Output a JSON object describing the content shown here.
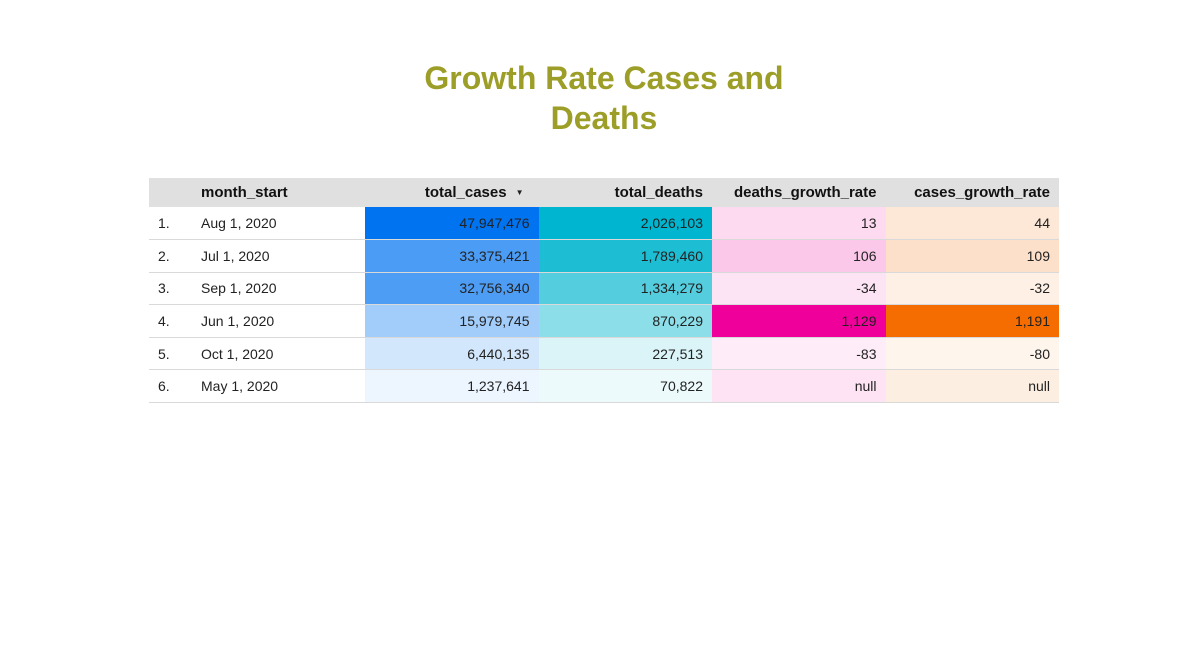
{
  "chart_data": {
    "type": "table",
    "title": "Growth Rate Cases and Deaths",
    "columns": [
      "month_start",
      "total_cases",
      "total_deaths",
      "deaths_growth_rate",
      "cases_growth_rate"
    ],
    "sorted_column": "total_cases",
    "sort_direction": "descending",
    "rows": [
      {
        "index": "1.",
        "month_start": "Aug 1, 2020",
        "total_cases": "47,947,476",
        "total_deaths": "2,026,103",
        "deaths_growth_rate": "13",
        "cases_growth_rate": "44"
      },
      {
        "index": "2.",
        "month_start": "Jul 1, 2020",
        "total_cases": "33,375,421",
        "total_deaths": "1,789,460",
        "deaths_growth_rate": "106",
        "cases_growth_rate": "109"
      },
      {
        "index": "3.",
        "month_start": "Sep 1, 2020",
        "total_cases": "32,756,340",
        "total_deaths": "1,334,279",
        "deaths_growth_rate": "-34",
        "cases_growth_rate": "-32"
      },
      {
        "index": "4.",
        "month_start": "Jun 1, 2020",
        "total_cases": "15,979,745",
        "total_deaths": "870,229",
        "deaths_growth_rate": "1,129",
        "cases_growth_rate": "1,191"
      },
      {
        "index": "5.",
        "month_start": "Oct 1, 2020",
        "total_cases": "6,440,135",
        "total_deaths": "227,513",
        "deaths_growth_rate": "-83",
        "cases_growth_rate": "-80"
      },
      {
        "index": "6.",
        "month_start": "May 1, 2020",
        "total_cases": "1,237,641",
        "total_deaths": "70,822",
        "deaths_growth_rate": "null",
        "cases_growth_rate": "null"
      }
    ],
    "heatmap_colors": {
      "total_cases": "#0073f0",
      "total_deaths": "#00b5cf",
      "deaths_growth_rate": "#f0009a",
      "cases_growth_rate": "#f56c00",
      "null_deaths_growth_rate": "#fde3f3",
      "null_cases_growth_rate": "#fdeee2"
    },
    "title_color": "#9c9e27",
    "header_background": "#e0e0e0"
  },
  "icons": {
    "sort": "sort-descending-icon"
  }
}
